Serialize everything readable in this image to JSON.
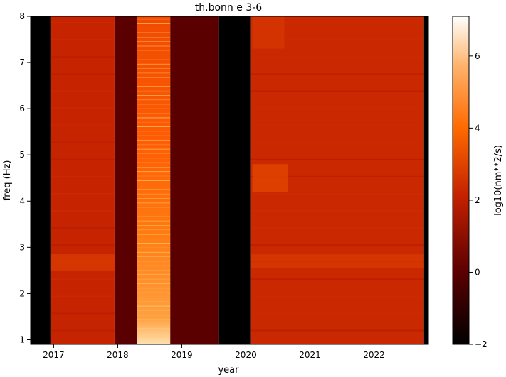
{
  "chart_data": {
    "type": "heatmap",
    "title": "th.bonn e 3-6",
    "xlabel": "year",
    "ylabel": "freq (Hz)",
    "colorbar_label": "log10(nm**2/s)",
    "colormap": "gist_heat",
    "xlim": [
      2016.64,
      2022.85
    ],
    "ylim": [
      0.9,
      8.0
    ],
    "clim": [
      -2,
      7.1
    ],
    "x_ticks": [
      2017,
      2018,
      2019,
      2020,
      2021,
      2022
    ],
    "x_tick_labels": [
      "2017",
      "2018",
      "2019",
      "2020",
      "2021",
      "2022"
    ],
    "y_ticks": [
      1,
      2,
      3,
      4,
      5,
      6,
      7,
      8
    ],
    "y_tick_labels": [
      "1",
      "2",
      "3",
      "4",
      "5",
      "6",
      "7",
      "8"
    ],
    "colorbar_ticks": [
      -2,
      0,
      2,
      4,
      6
    ],
    "colorbar_tick_labels": [
      "−2",
      "0",
      "2",
      "4",
      "6"
    ],
    "segments": [
      {
        "x0": 2016.64,
        "x1": 2016.95,
        "level": -2.0
      },
      {
        "x0": 2016.95,
        "x1": 2017.95,
        "level": 2.2
      },
      {
        "x0": 2017.95,
        "x1": 2018.3,
        "level": 0.0
      },
      {
        "x0": 2018.3,
        "x1": 2018.82,
        "level": 3.9
      },
      {
        "x0": 2018.82,
        "x1": 2019.58,
        "level": 0.0
      },
      {
        "x0": 2019.58,
        "x1": 2020.07,
        "level": -2.0
      },
      {
        "x0": 2020.07,
        "x1": 2022.78,
        "level": 2.3
      },
      {
        "x0": 2022.78,
        "x1": 2022.85,
        "level": -2.0
      }
    ],
    "bands": [
      {
        "x0": 2016.95,
        "x1": 2017.95,
        "f0": 2.5,
        "f1": 2.85,
        "level": 2.8
      },
      {
        "x0": 2020.07,
        "x1": 2022.78,
        "f0": 2.55,
        "f1": 2.85,
        "level": 2.75
      },
      {
        "x0": 2020.1,
        "x1": 2020.65,
        "f0": 4.2,
        "f1": 4.8,
        "level": 3.1
      },
      {
        "x0": 2020.1,
        "x1": 2020.6,
        "f0": 7.3,
        "f1": 8.0,
        "level": 2.7
      }
    ]
  }
}
